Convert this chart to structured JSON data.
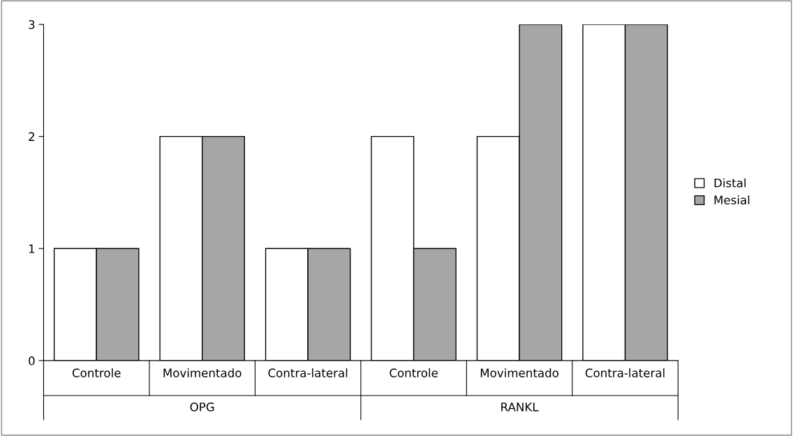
{
  "chart_data": {
    "type": "bar",
    "categories": [
      "Controle",
      "Movimentado",
      "Contra-lateral",
      "Controle",
      "Movimentado",
      "Contra-lateral"
    ],
    "series": [
      {
        "name": "Distal",
        "color": "#ffffff",
        "values": [
          1,
          2,
          1,
          2,
          2,
          3
        ]
      },
      {
        "name": "Mesial",
        "color": "#a6a6a6",
        "values": [
          1,
          2,
          1,
          1,
          3,
          3
        ]
      }
    ],
    "annotations": [
      "OPG",
      "RANKL"
    ],
    "ylim": [
      0,
      3
    ],
    "yticks": [
      0,
      1,
      2,
      3
    ],
    "grid": false,
    "legend": "right"
  }
}
